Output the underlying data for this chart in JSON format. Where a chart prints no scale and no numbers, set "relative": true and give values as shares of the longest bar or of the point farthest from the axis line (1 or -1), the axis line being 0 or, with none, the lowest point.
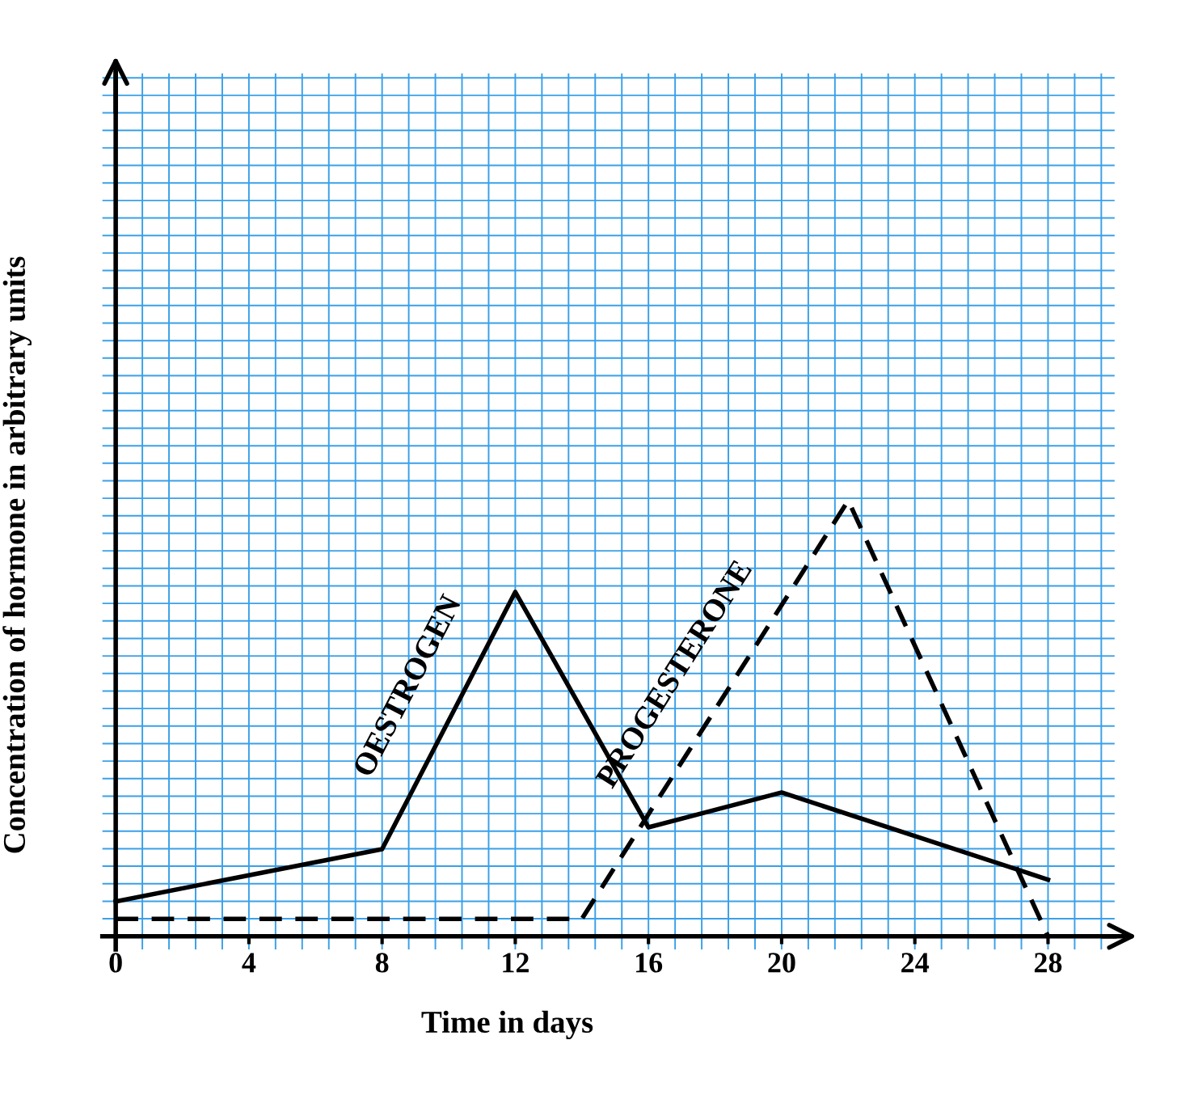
{
  "chart_data": {
    "type": "line",
    "xlabel": "Time in days",
    "ylabel": "Concentration of hormone in arbitrary units",
    "relative": true,
    "xlim": [
      -0.4,
      30
    ],
    "xticks": [
      0,
      4,
      8,
      12,
      16,
      20,
      24,
      28
    ],
    "grid": true,
    "legend": false,
    "series": [
      {
        "name": "OESTROGEN",
        "color": "#000000",
        "line_style": "solid",
        "x": [
          0,
          8,
          12,
          16,
          20,
          28
        ],
        "values": [
          0.08,
          0.2,
          0.79,
          0.25,
          0.33,
          0.13
        ]
      },
      {
        "name": "PROGESTERONE",
        "color": "#000000",
        "line_style": "dashed",
        "x": [
          0,
          14,
          22,
          28
        ],
        "values": [
          0.04,
          0.04,
          1,
          0
        ]
      }
    ]
  }
}
